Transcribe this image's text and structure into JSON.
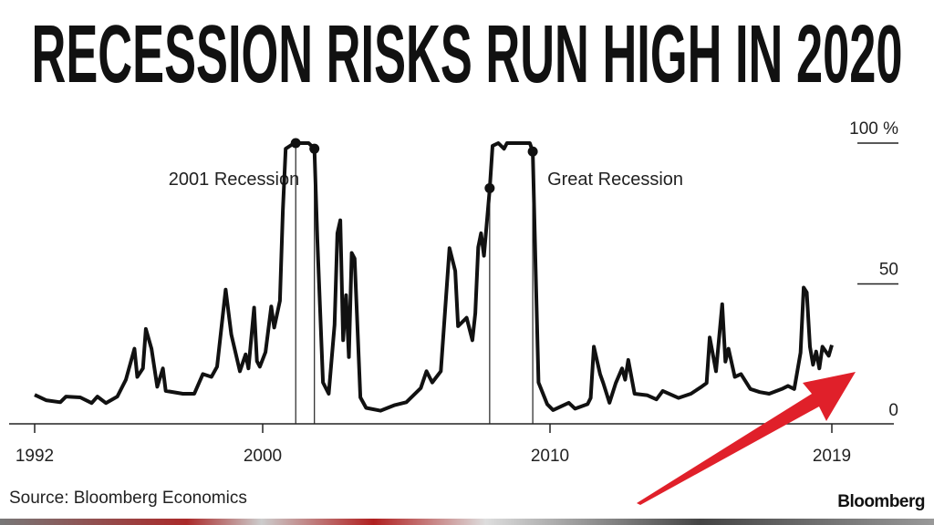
{
  "title": "RECESSION RISKS RUN HIGH IN 2020",
  "source": "Source: Bloomberg Economics",
  "brand": "Bloomberg",
  "colors": {
    "line": "#111111",
    "arrow": "#e0202a",
    "text": "#222222"
  },
  "chart_data": {
    "type": "line",
    "title": "RECESSION RISKS RUN HIGH IN 2020",
    "ylim": [
      0,
      100
    ],
    "y_ticks": [
      {
        "value": 100,
        "label": "100 %"
      },
      {
        "value": 50,
        "label": "50"
      },
      {
        "value": 0,
        "label": "0"
      }
    ],
    "x_ticks": [
      {
        "value": 1992,
        "label": "1992"
      },
      {
        "value": 2000,
        "label": "2000"
      },
      {
        "value": 2010,
        "label": "2010"
      },
      {
        "value": 2019,
        "label": "2019"
      }
    ],
    "grid": false,
    "y_axis_side": "right",
    "series": [
      {
        "points": [
          [
            1992.0,
            10.6
          ],
          [
            1992.4,
            8.7
          ],
          [
            1992.9,
            8
          ],
          [
            1993.1,
            10
          ],
          [
            1993.6,
            9.7
          ],
          [
            1994.0,
            7.7
          ],
          [
            1994.2,
            10
          ],
          [
            1994.5,
            7.7
          ],
          [
            1994.9,
            10
          ],
          [
            1995.2,
            16
          ],
          [
            1995.5,
            27
          ],
          [
            1995.6,
            17
          ],
          [
            1995.8,
            20
          ],
          [
            1995.9,
            34
          ],
          [
            1996.1,
            27
          ],
          [
            1996.3,
            13.5
          ],
          [
            1996.5,
            20
          ],
          [
            1996.6,
            12
          ],
          [
            1997.2,
            11
          ],
          [
            1997.6,
            11
          ],
          [
            1997.9,
            18
          ],
          [
            1998.2,
            17
          ],
          [
            1998.4,
            20.6
          ],
          [
            1998.7,
            48
          ],
          [
            1998.9,
            32
          ],
          [
            1999.2,
            19
          ],
          [
            1999.4,
            25
          ],
          [
            1999.5,
            20
          ],
          [
            1999.7,
            41.6
          ],
          [
            1999.8,
            22.6
          ],
          [
            1999.9,
            20.6
          ],
          [
            2000.1,
            25.8
          ],
          [
            2000.3,
            42
          ],
          [
            2000.4,
            34.5
          ],
          [
            2000.6,
            44
          ],
          [
            2000.7,
            76
          ],
          [
            2000.8,
            98
          ],
          [
            2001.1,
            100
          ],
          [
            2001.6,
            100
          ],
          [
            2001.8,
            98
          ],
          [
            2001.9,
            66
          ],
          [
            2002.1,
            15
          ],
          [
            2002.3,
            11
          ],
          [
            2002.5,
            35.5
          ],
          [
            2002.6,
            68
          ],
          [
            2002.7,
            72.6
          ],
          [
            2002.8,
            30
          ],
          [
            2002.9,
            46
          ],
          [
            2003.0,
            24
          ],
          [
            2003.1,
            61
          ],
          [
            2003.2,
            59
          ],
          [
            2003.4,
            9.7
          ],
          [
            2003.6,
            6
          ],
          [
            2004.1,
            5
          ],
          [
            2004.6,
            7
          ],
          [
            2005.0,
            8
          ],
          [
            2005.5,
            13
          ],
          [
            2005.7,
            19
          ],
          [
            2005.9,
            15
          ],
          [
            2006.2,
            19
          ],
          [
            2006.5,
            62.7
          ],
          [
            2006.7,
            54.6
          ],
          [
            2006.8,
            35
          ],
          [
            2007.1,
            38
          ],
          [
            2007.3,
            30
          ],
          [
            2007.4,
            39.6
          ],
          [
            2007.5,
            63
          ],
          [
            2007.6,
            68
          ],
          [
            2007.7,
            60
          ],
          [
            2007.9,
            83.7
          ],
          [
            2008.0,
            99
          ],
          [
            2008.2,
            100
          ],
          [
            2008.4,
            98
          ],
          [
            2008.5,
            100
          ],
          [
            2009.3,
            100
          ],
          [
            2009.4,
            97
          ],
          [
            2009.5,
            54.6
          ],
          [
            2009.6,
            15
          ],
          [
            2009.9,
            7.3
          ],
          [
            2010.1,
            5.2
          ],
          [
            2010.6,
            7.8
          ],
          [
            2010.8,
            5.7
          ],
          [
            2011.2,
            7.3
          ],
          [
            2011.3,
            9.5
          ],
          [
            2011.4,
            27.7
          ],
          [
            2011.6,
            18
          ],
          [
            2011.7,
            14.8
          ],
          [
            2011.9,
            7.8
          ],
          [
            2012.1,
            14.8
          ],
          [
            2012.3,
            20
          ],
          [
            2012.4,
            16
          ],
          [
            2012.5,
            23
          ],
          [
            2012.7,
            11
          ],
          [
            2013.1,
            10.5
          ],
          [
            2013.4,
            9
          ],
          [
            2013.6,
            12
          ],
          [
            2014.1,
            9.5
          ],
          [
            2014.5,
            11
          ],
          [
            2014.8,
            13.2
          ],
          [
            2015.0,
            14.8
          ],
          [
            2015.1,
            31
          ],
          [
            2015.3,
            19
          ],
          [
            2015.5,
            42.8
          ],
          [
            2015.6,
            22.4
          ],
          [
            2015.7,
            27
          ],
          [
            2015.9,
            17
          ],
          [
            2016.1,
            18
          ],
          [
            2016.4,
            12.7
          ],
          [
            2016.7,
            11.6
          ],
          [
            2017.0,
            11
          ],
          [
            2017.4,
            12.7
          ],
          [
            2017.6,
            13.8
          ],
          [
            2017.8,
            12.7
          ],
          [
            2018.0,
            25.6
          ],
          [
            2018.1,
            48.7
          ],
          [
            2018.2,
            47
          ],
          [
            2018.3,
            27.7
          ],
          [
            2018.4,
            21.3
          ],
          [
            2018.5,
            26
          ],
          [
            2018.6,
            20
          ],
          [
            2018.7,
            27.7
          ],
          [
            2018.9,
            24.5
          ],
          [
            2019.0,
            28.3
          ]
        ]
      }
    ],
    "recessions": [
      {
        "label": "2001 Recession",
        "start": 2001.15,
        "end": 2001.8,
        "start_value": 100,
        "end_value": 98
      },
      {
        "label": "Great Recession",
        "start": 2007.9,
        "end": 2009.4,
        "start_value": 84,
        "end_value": 97
      }
    ],
    "annotations": [
      {
        "type": "arrow",
        "color": "#e0202a",
        "points_to": "2019 rise"
      }
    ]
  }
}
